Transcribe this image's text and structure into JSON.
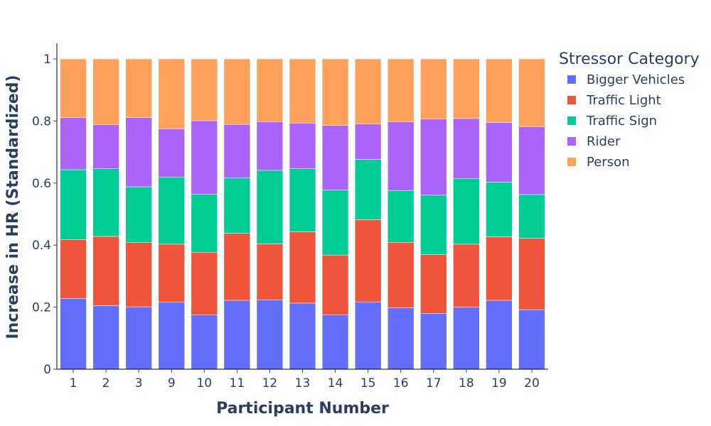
{
  "chart_data": {
    "type": "bar",
    "stacked": true,
    "categories": [
      "1",
      "2",
      "3",
      "9",
      "10",
      "11",
      "12",
      "13",
      "14",
      "15",
      "16",
      "17",
      "18",
      "19",
      "20"
    ],
    "series": [
      {
        "name": "Bigger Vehicles",
        "color": "#636efa",
        "values": [
          0.228,
          0.205,
          0.201,
          0.216,
          0.175,
          0.222,
          0.224,
          0.213,
          0.175,
          0.217,
          0.198,
          0.18,
          0.2,
          0.222,
          0.192
        ]
      },
      {
        "name": "Traffic Light",
        "color": "#ef553b",
        "values": [
          0.19,
          0.223,
          0.207,
          0.187,
          0.202,
          0.216,
          0.18,
          0.23,
          0.193,
          0.265,
          0.211,
          0.189,
          0.203,
          0.205,
          0.23
        ]
      },
      {
        "name": "Traffic Sign",
        "color": "#00cc96",
        "values": [
          0.225,
          0.218,
          0.18,
          0.216,
          0.187,
          0.178,
          0.237,
          0.203,
          0.209,
          0.194,
          0.167,
          0.192,
          0.212,
          0.176,
          0.141
        ]
      },
      {
        "name": "Rider",
        "color": "#ab63fa",
        "values": [
          0.168,
          0.142,
          0.223,
          0.156,
          0.237,
          0.173,
          0.157,
          0.147,
          0.209,
          0.114,
          0.221,
          0.245,
          0.193,
          0.192,
          0.218
        ]
      },
      {
        "name": "Person",
        "color": "#ffa15a",
        "values": [
          0.189,
          0.212,
          0.189,
          0.225,
          0.199,
          0.211,
          0.202,
          0.207,
          0.214,
          0.21,
          0.203,
          0.194,
          0.192,
          0.205,
          0.219
        ]
      }
    ],
    "xlabel": "Participant Number",
    "ylabel": "Increase in HR (Standardized)",
    "ylim": [
      0,
      1
    ],
    "yticks": [
      0,
      0.2,
      0.4,
      0.6,
      0.8,
      1
    ],
    "ytick_labels": [
      "0",
      "0.2",
      "0.4",
      "0.6",
      "0.8",
      "1"
    ],
    "legend_title": "Stressor Category",
    "legend_position": "top-right",
    "grid": false
  }
}
